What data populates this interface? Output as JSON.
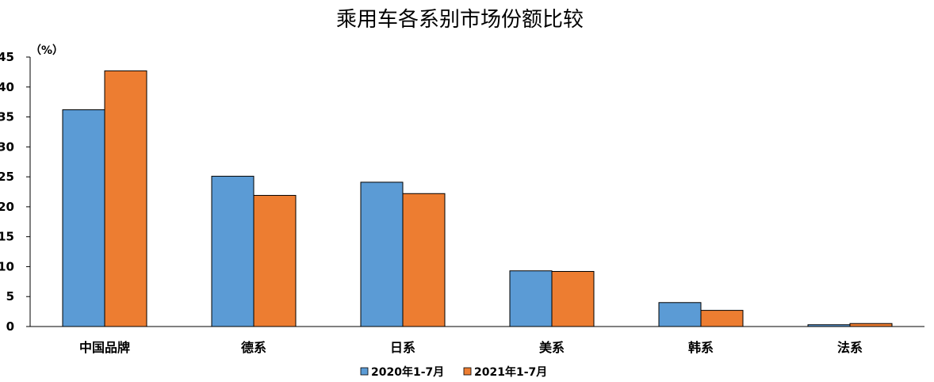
{
  "chart_data": {
    "type": "bar",
    "title": "乘用车各系别市场份额比较",
    "unit_label": "（%）",
    "categories": [
      "中国品牌",
      "德系",
      "日系",
      "美系",
      "韩系",
      "法系"
    ],
    "series": [
      {
        "name": "2020年1-7月",
        "color": "#5b9bd5",
        "values": [
          36.2,
          25.1,
          24.1,
          9.3,
          4.0,
          0.3
        ]
      },
      {
        "name": "2021年1-7月",
        "color": "#ed7d31",
        "values": [
          42.7,
          21.9,
          22.2,
          9.2,
          2.7,
          0.5
        ]
      }
    ],
    "ylim": [
      0,
      45
    ],
    "yticks": [
      0,
      5,
      10,
      15,
      20,
      25,
      30,
      35,
      40,
      45
    ],
    "grid": false,
    "legend_position": "bottom"
  }
}
